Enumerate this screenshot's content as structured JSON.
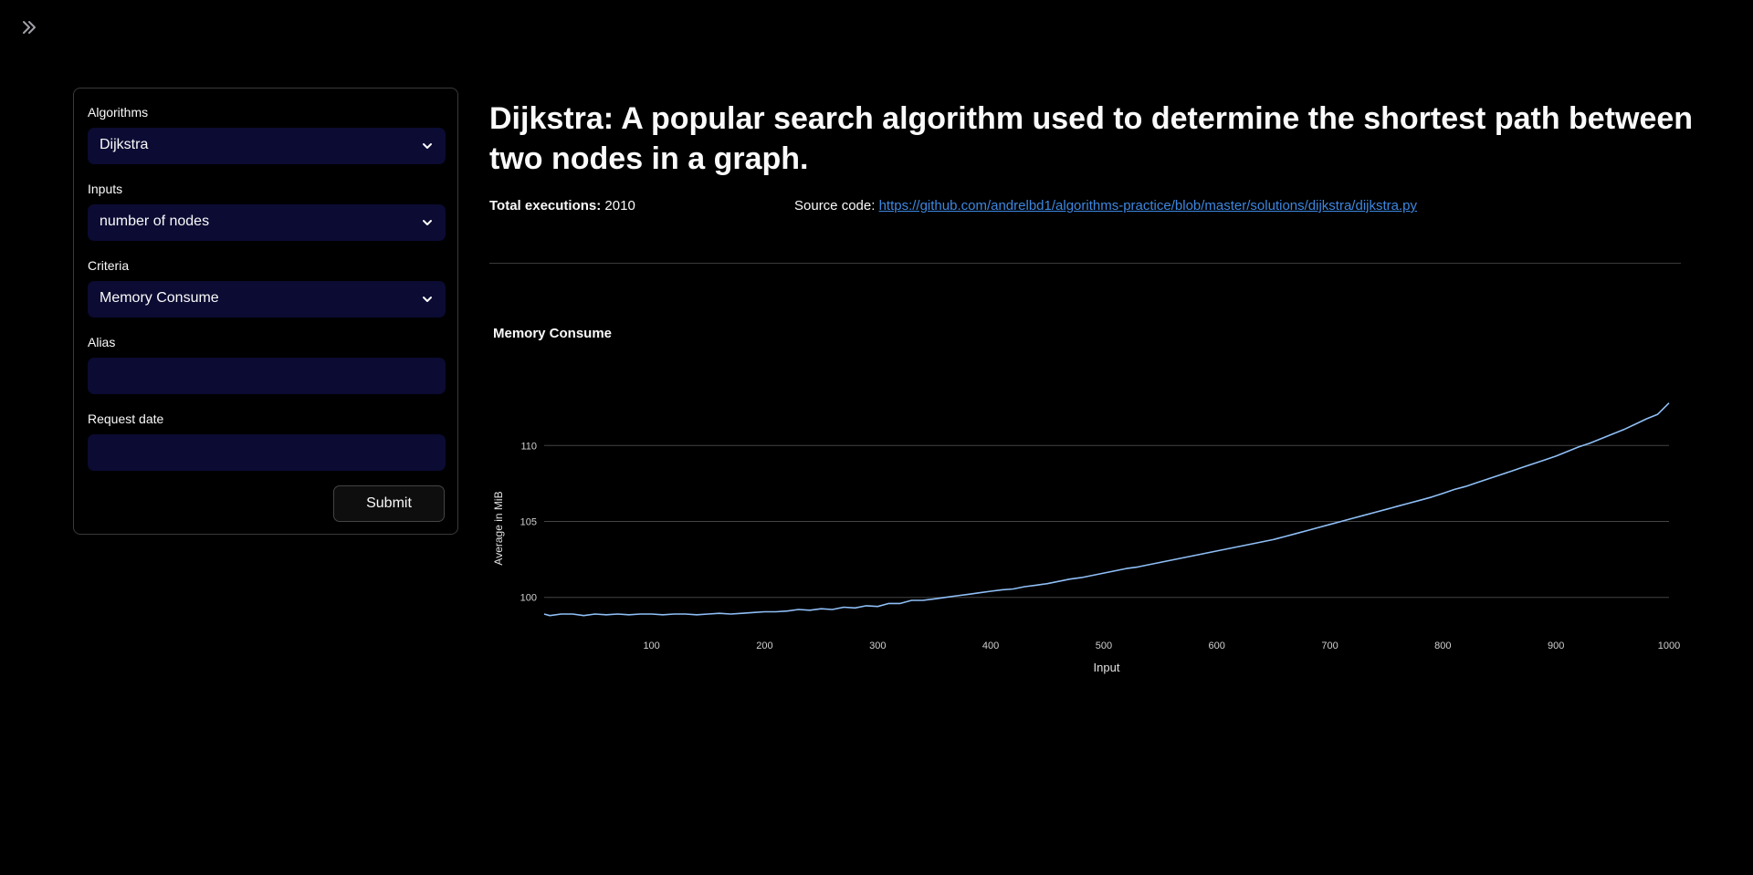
{
  "sidebar": {
    "toggle_icon": "double-chevron-right-icon",
    "fields": {
      "algorithms": {
        "label": "Algorithms",
        "value": "Dijkstra"
      },
      "inputs": {
        "label": "Inputs",
        "value": "number of nodes"
      },
      "criteria": {
        "label": "Criteria",
        "value": "Memory Consume"
      },
      "alias": {
        "label": "Alias",
        "value": ""
      },
      "request_date": {
        "label": "Request date",
        "value": ""
      }
    },
    "submit_label": "Submit"
  },
  "main": {
    "title": "Dijkstra: A popular search algorithm used to determine the shortest path between two nodes in a graph.",
    "total_executions_label": "Total executions:",
    "total_executions_value": "2010",
    "source_label": "Source code:",
    "source_url": "https://github.com/andrelbd1/algorithms-practice/blob/master/solutions/dijkstra/dijkstra.py"
  },
  "colors": {
    "background": "#000000",
    "input_background": "#0b0b33",
    "line": "#8fbff7",
    "link": "#3d87e0",
    "grid": "#444444"
  },
  "chart_data": {
    "type": "line",
    "title": "Memory Consume",
    "xlabel": "Input",
    "ylabel": "Average in MiB",
    "xlim": [
      5,
      1000
    ],
    "ylim": [
      98.6,
      113.5
    ],
    "xticks": [
      100,
      200,
      300,
      400,
      500,
      600,
      700,
      800,
      900,
      1000
    ],
    "yticks": [
      100,
      105,
      110
    ],
    "grid": "horizontal",
    "series": [
      {
        "x": [
          5,
          10,
          20,
          30,
          40,
          50,
          60,
          70,
          80,
          90,
          100,
          110,
          120,
          130,
          140,
          150,
          160,
          170,
          180,
          190,
          200,
          210,
          220,
          230,
          240,
          250,
          260,
          270,
          280,
          290,
          300,
          310,
          320,
          330,
          340,
          350,
          360,
          370,
          380,
          390,
          400,
          410,
          420,
          430,
          440,
          450,
          460,
          470,
          480,
          490,
          500,
          510,
          520,
          530,
          540,
          550,
          560,
          570,
          580,
          590,
          600,
          610,
          620,
          630,
          640,
          650,
          660,
          670,
          680,
          690,
          700,
          710,
          720,
          730,
          740,
          750,
          760,
          770,
          780,
          790,
          800,
          810,
          820,
          830,
          840,
          850,
          860,
          870,
          880,
          890,
          900,
          910,
          920,
          930,
          940,
          950,
          960,
          970,
          980,
          990,
          1000
        ],
        "y": [
          98.9,
          98.8,
          98.9,
          98.9,
          98.8,
          98.9,
          98.85,
          98.9,
          98.85,
          98.9,
          98.9,
          98.85,
          98.9,
          98.9,
          98.85,
          98.9,
          98.95,
          98.9,
          98.95,
          99.0,
          99.05,
          99.05,
          99.1,
          99.2,
          99.15,
          99.25,
          99.2,
          99.35,
          99.3,
          99.45,
          99.4,
          99.6,
          99.6,
          99.8,
          99.8,
          99.9,
          100.0,
          100.1,
          100.2,
          100.3,
          100.4,
          100.5,
          100.55,
          100.7,
          100.8,
          100.9,
          101.05,
          101.2,
          101.3,
          101.45,
          101.6,
          101.75,
          101.9,
          102.0,
          102.15,
          102.3,
          102.45,
          102.6,
          102.75,
          102.9,
          103.05,
          103.2,
          103.35,
          103.5,
          103.65,
          103.8,
          104.0,
          104.2,
          104.4,
          104.6,
          104.8,
          105.0,
          105.2,
          105.4,
          105.6,
          105.8,
          106.0,
          106.2,
          106.4,
          106.6,
          106.85,
          107.1,
          107.3,
          107.55,
          107.8,
          108.05,
          108.3,
          108.55,
          108.8,
          109.05,
          109.3,
          109.6,
          109.9,
          110.15,
          110.45,
          110.75,
          111.05,
          111.4,
          111.75,
          112.05,
          112.8
        ]
      }
    ]
  }
}
